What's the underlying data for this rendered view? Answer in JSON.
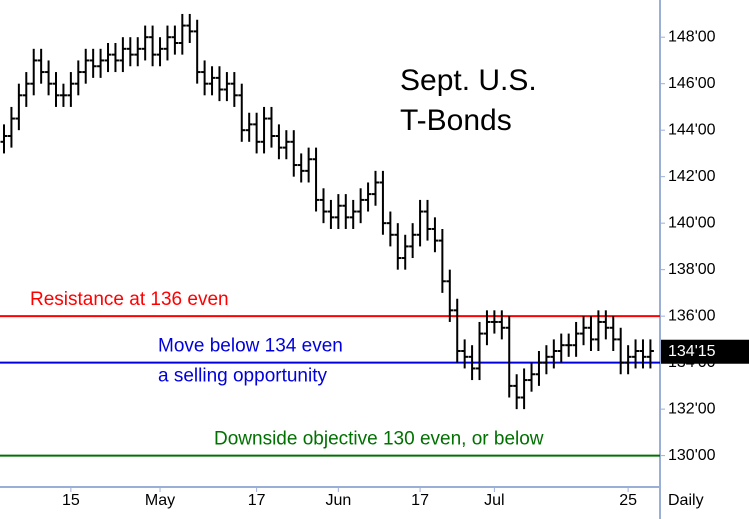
{
  "chart_data": {
    "type": "ohlc",
    "title_lines": [
      "Sept. U.S.",
      "T-Bonds"
    ],
    "x_axis_label": "Daily",
    "categories": [
      null,
      null,
      null,
      null,
      null,
      null,
      null,
      null,
      null,
      "15",
      null,
      null,
      null,
      null,
      null,
      null,
      null,
      null,
      null,
      null,
      null,
      "May",
      null,
      null,
      null,
      null,
      null,
      null,
      null,
      null,
      null,
      null,
      null,
      null,
      "17",
      null,
      null,
      null,
      null,
      null,
      null,
      null,
      null,
      null,
      null,
      "Jun",
      null,
      null,
      null,
      null,
      null,
      null,
      null,
      null,
      null,
      null,
      "17",
      null,
      null,
      null,
      null,
      null,
      null,
      null,
      null,
      null,
      "Jul",
      null,
      null,
      null,
      null,
      null,
      null,
      null,
      null,
      null,
      null,
      null,
      null,
      null,
      null,
      null,
      null,
      null,
      "25",
      null,
      null,
      null
    ],
    "open": [
      143.5,
      143.75,
      144.5,
      145.5,
      146,
      147,
      146.5,
      146,
      145.5,
      145.5,
      146,
      146.5,
      147,
      146.75,
      147,
      147.25,
      147,
      147.5,
      147.25,
      147.5,
      148,
      147.25,
      147.5,
      148,
      147.75,
      148.5,
      148.25,
      146.5,
      146,
      146.25,
      145.75,
      146,
      145.5,
      144,
      144.25,
      143.5,
      144.5,
      143.75,
      143.25,
      143.5,
      142.5,
      142.25,
      142.75,
      141,
      140.5,
      140.25,
      140.75,
      140.25,
      140.5,
      141,
      141.25,
      141.75,
      140,
      139.5,
      138.5,
      139,
      139.5,
      140.5,
      139.75,
      139.25,
      137.5,
      136.25,
      134.5,
      134.25,
      133.75,
      135.25,
      135.75,
      135.75,
      135.5,
      133,
      132.5,
      133.25,
      133.5,
      134,
      134.25,
      134.5,
      134.75,
      134.75,
      135.25,
      135.5,
      135,
      135.75,
      135.5,
      135,
      134,
      134.25,
      134.5,
      134.25
    ],
    "high": [
      144.25,
      145,
      146,
      146.5,
      147.5,
      147.5,
      147,
      146.5,
      146,
      146.5,
      147,
      147.5,
      147.5,
      147.5,
      147.75,
      147.75,
      148,
      148,
      148,
      148.5,
      148.5,
      148,
      148.5,
      148.5,
      149,
      149,
      148.75,
      147,
      146.75,
      146.75,
      146.5,
      146.5,
      146,
      144.75,
      144.75,
      145,
      145,
      144.25,
      144,
      144,
      143,
      143.25,
      143.25,
      141.5,
      141,
      141.25,
      141.25,
      141,
      141.5,
      141.75,
      142.25,
      142.25,
      140.5,
      140,
      139.5,
      140,
      141,
      141,
      140.25,
      139.75,
      138,
      136.75,
      135,
      134.75,
      135.75,
      136.25,
      136.25,
      136.25,
      136,
      133.5,
      133.75,
      134,
      134.5,
      134.75,
      135,
      135.25,
      135.25,
      135.75,
      136,
      136,
      136.25,
      136.25,
      136,
      135.5,
      134.75,
      135,
      135,
      135
    ],
    "low": [
      143,
      143.25,
      144,
      145,
      145.5,
      146,
      145.5,
      145,
      145,
      145,
      145.5,
      146,
      146.25,
      146.25,
      146.5,
      146.5,
      146.5,
      146.75,
      146.75,
      147,
      146.75,
      146.75,
      147,
      147.25,
      147.25,
      147.75,
      146,
      145.5,
      145.5,
      145.25,
      145.25,
      145,
      143.5,
      143.5,
      143,
      143,
      143.25,
      142.75,
      142.75,
      142,
      141.75,
      141.75,
      140.5,
      140,
      139.75,
      139.75,
      139.75,
      139.75,
      140,
      140.5,
      140.75,
      139.5,
      139,
      138,
      138,
      138.5,
      139,
      139.25,
      138.75,
      137,
      135.75,
      134,
      133.75,
      133.25,
      133.25,
      134.75,
      135.25,
      135,
      132.5,
      132,
      132,
      132.75,
      133,
      133.5,
      133.75,
      134,
      134.25,
      134.25,
      134.75,
      134.5,
      134.5,
      135,
      134.5,
      133.5,
      133.5,
      133.75,
      133.75,
      133.75
    ],
    "close": [
      143.75,
      144.5,
      145.5,
      146,
      147,
      146.5,
      146,
      145.5,
      145.5,
      146,
      146.5,
      147,
      146.75,
      147,
      147.25,
      147,
      147.5,
      147.25,
      147.5,
      148,
      147.25,
      147.5,
      148,
      147.75,
      148.5,
      148.25,
      146.5,
      146,
      146.25,
      145.75,
      146,
      145.5,
      144,
      144.25,
      143.5,
      144.5,
      143.75,
      143.25,
      143.5,
      142.5,
      142.25,
      142.75,
      141,
      140.5,
      140.25,
      140.75,
      140.25,
      140.5,
      141,
      141.25,
      141.75,
      140,
      139.5,
      138.5,
      139,
      139.5,
      140.5,
      139.75,
      139.25,
      137.5,
      136.25,
      134.5,
      134.25,
      133.75,
      135.25,
      135.75,
      135.75,
      135.5,
      133,
      132.5,
      133.25,
      133.5,
      134,
      134.25,
      134.5,
      134.75,
      134.75,
      135.25,
      135.5,
      135,
      135.75,
      135.5,
      135,
      134,
      134.25,
      134.5,
      134.25,
      134.5
    ],
    "color": "#000000",
    "ylim": [
      128.65,
      149.6
    ],
    "yticks": [
      {
        "value": 130,
        "label": "130'00"
      },
      {
        "value": 132,
        "label": "132'00"
      },
      {
        "value": 134,
        "label": "134'00"
      },
      {
        "value": 136,
        "label": "136'00"
      },
      {
        "value": 138,
        "label": "138'00"
      },
      {
        "value": 140,
        "label": "140'00"
      },
      {
        "value": 142,
        "label": "142'00"
      },
      {
        "value": 144,
        "label": "144'00"
      },
      {
        "value": 146,
        "label": "146'00"
      },
      {
        "value": 148,
        "label": "148'00"
      }
    ],
    "last": {
      "value": 134.46875,
      "label": "134'15"
    },
    "reference_lines": [
      {
        "value": 136,
        "color": "#ff0000",
        "labels": [
          "Resistance at 136 even"
        ]
      },
      {
        "value": 134,
        "color": "#0000dd",
        "labels": [
          "Move below 134 even",
          "a selling opportunity"
        ]
      },
      {
        "value": 130,
        "color": "#007000",
        "labels": [
          "Downside objective 130 even, or below"
        ]
      }
    ]
  }
}
